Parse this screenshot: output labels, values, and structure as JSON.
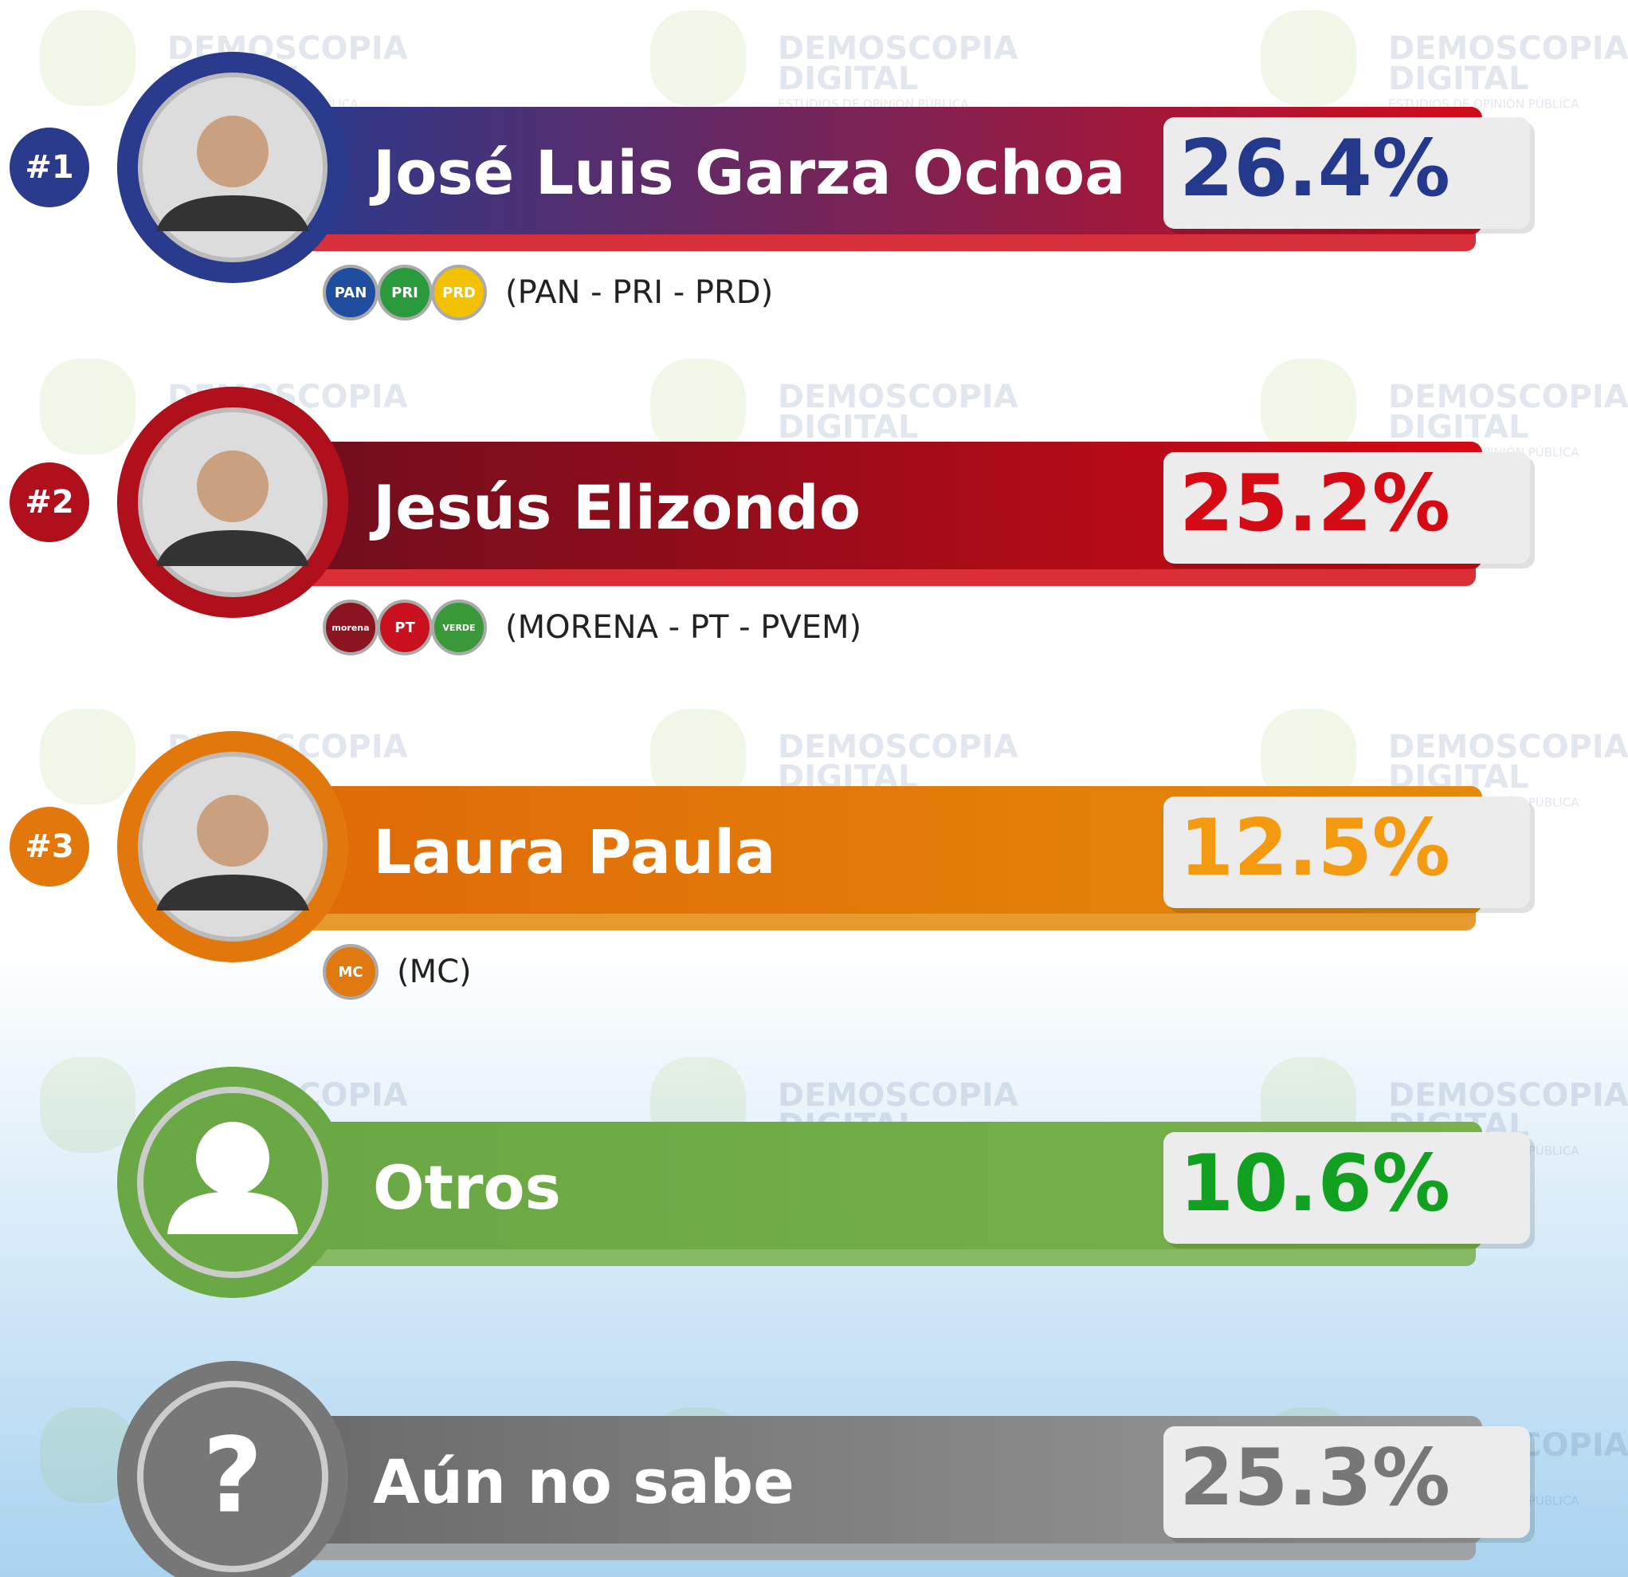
{
  "watermark": {
    "brand": "DEMOSCOPIA",
    "brand2": "DIGITAL",
    "tagline": "ESTUDIOS DE OPINIÓN PÚBLICA"
  },
  "rows": [
    {
      "rank": "#1",
      "name": "José Luis Garza Ochoa",
      "value": "26.4%",
      "parties": "(PAN - PRI - PRD)",
      "logos": [
        {
          "label": "PAN",
          "color": "#1f4ea0"
        },
        {
          "label": "PRI",
          "color": "#2a9a3c"
        },
        {
          "label": "PRD",
          "color": "#f2c200"
        }
      ],
      "color_start": "#2a3a8c",
      "color_end": "#d10a1a",
      "accent": "#2a3a8c",
      "value_color": "#24388c"
    },
    {
      "rank": "#2",
      "name": "Jesús Elizondo",
      "value": "25.2%",
      "parties": "(MORENA - PT - PVEM)",
      "logos": [
        {
          "label": "morena",
          "color": "#8a1420"
        },
        {
          "label": "PT",
          "color": "#c8101e"
        },
        {
          "label": "VERDE",
          "color": "#3a9a3a"
        }
      ],
      "color_start": "#6e0e1e",
      "color_end": "#d40a14",
      "accent": "#b0101c",
      "value_color": "#d40a14"
    },
    {
      "rank": "#3",
      "name": "Laura Paula",
      "value": "12.5%",
      "parties": "(MC)",
      "logos": [
        {
          "label": "MC",
          "color": "#e07a10"
        }
      ],
      "color_start": "#e06a08",
      "color_end": "#e38a0a",
      "accent": "#e2780c",
      "value_color": "#f39a10"
    },
    {
      "name": "Otros",
      "value": "10.6%",
      "icon": "person",
      "color_start": "#6aa845",
      "color_end": "#78b04a",
      "accent": "#6aa845",
      "value_color": "#12a020"
    },
    {
      "name": "Aún no sabe",
      "value": "25.3%",
      "icon": "?",
      "color_start": "#6a6a6a",
      "color_end": "#9a9a9a",
      "accent": "#777777",
      "value_color": "#777777"
    }
  ]
}
